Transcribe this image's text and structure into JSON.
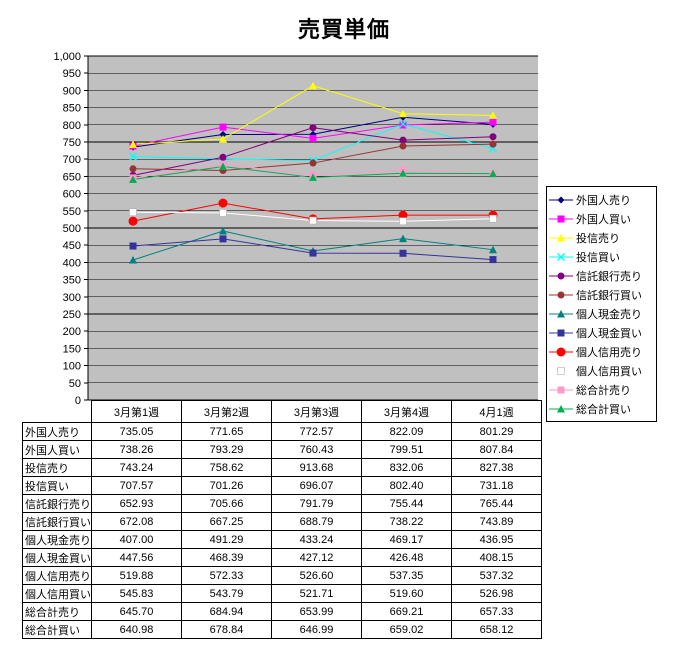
{
  "chart_data": {
    "type": "line",
    "title": "売買単価",
    "categories": [
      "3月第1週",
      "3月第2週",
      "3月第3週",
      "3月第4週",
      "4月1週"
    ],
    "ylim": [
      0,
      1000
    ],
    "ytick_interval": 50,
    "grid": true,
    "legend_position": "right",
    "plot_area_color": "#C0C0C0",
    "axis_color": "#000000",
    "series": [
      {
        "name": "外国人売り",
        "color": "#000080",
        "marker": "diamond",
        "values": [
          735.05,
          771.65,
          772.57,
          822.09,
          801.29
        ]
      },
      {
        "name": "外国人買い",
        "color": "#FF00FF",
        "marker": "square",
        "values": [
          738.26,
          793.29,
          760.43,
          799.51,
          807.84
        ]
      },
      {
        "name": "投信売り",
        "color": "#FFFF00",
        "marker": "triangle",
        "values": [
          743.24,
          758.62,
          913.68,
          832.06,
          827.38
        ]
      },
      {
        "name": "投信買い",
        "color": "#00FFFF",
        "marker": "x",
        "values": [
          707.57,
          701.26,
          696.07,
          802.4,
          731.18
        ]
      },
      {
        "name": "信託銀行売り",
        "color": "#800080",
        "marker": "circle",
        "values": [
          652.93,
          705.66,
          791.79,
          755.44,
          765.44
        ]
      },
      {
        "name": "信託銀行買い",
        "color": "#993333",
        "marker": "circle",
        "values": [
          672.08,
          667.25,
          688.79,
          738.22,
          743.89
        ]
      },
      {
        "name": "個人現金売り",
        "color": "#008080",
        "marker": "triangle",
        "values": [
          407.0,
          491.29,
          433.24,
          469.17,
          436.95
        ]
      },
      {
        "name": "個人現金買い",
        "color": "#333399",
        "marker": "square",
        "values": [
          447.56,
          468.39,
          427.12,
          426.48,
          408.15
        ]
      },
      {
        "name": "個人信用売り",
        "color": "#FF0000",
        "marker": "circle",
        "size": 9,
        "values": [
          519.88,
          572.33,
          526.6,
          537.35,
          537.32
        ]
      },
      {
        "name": "個人信用買い",
        "color": "#FFFFFF",
        "marker": "square",
        "values": [
          545.83,
          543.79,
          521.71,
          519.6,
          526.98
        ]
      },
      {
        "name": "総合計売り",
        "color": "#FF99CC",
        "marker": "square",
        "values": [
          645.7,
          684.94,
          653.99,
          669.21,
          657.33
        ]
      },
      {
        "name": "総合計買い",
        "color": "#00B050",
        "marker": "triangle",
        "values": [
          640.98,
          678.84,
          646.99,
          659.02,
          658.12
        ]
      }
    ]
  }
}
